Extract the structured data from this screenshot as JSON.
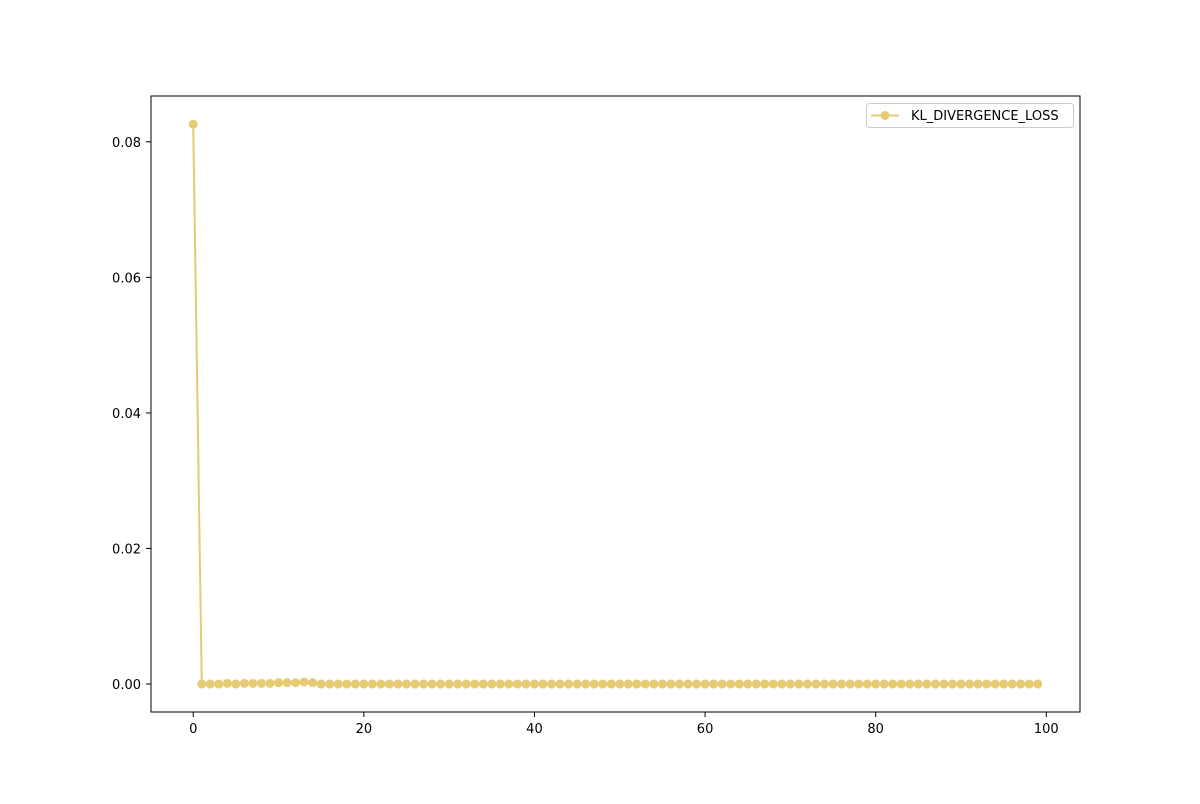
{
  "chart_data": {
    "type": "line",
    "title": "",
    "xlabel": "",
    "ylabel": "",
    "xlim": [
      -4.95,
      103.95
    ],
    "ylim": [
      -0.00413,
      0.08676
    ],
    "xticks": [
      0,
      20,
      40,
      60,
      80,
      100
    ],
    "xtick_labels": [
      "0",
      "20",
      "40",
      "60",
      "80",
      "100"
    ],
    "yticks": [
      0.0,
      0.02,
      0.04,
      0.06,
      0.08
    ],
    "ytick_labels": [
      "0.00",
      "0.02",
      "0.04",
      "0.06",
      "0.08"
    ],
    "grid": false,
    "legend_position": "top-right",
    "series": [
      {
        "name": "KL_DIVERGENCE_LOSS",
        "color": "#e5cc74",
        "marker": "circle",
        "x": [
          0,
          1,
          2,
          3,
          4,
          5,
          6,
          7,
          8,
          9,
          10,
          11,
          12,
          13,
          14,
          15,
          16,
          17,
          18,
          19,
          20,
          21,
          22,
          23,
          24,
          25,
          26,
          27,
          28,
          29,
          30,
          31,
          32,
          33,
          34,
          35,
          36,
          37,
          38,
          39,
          40,
          41,
          42,
          43,
          44,
          45,
          46,
          47,
          48,
          49,
          50,
          51,
          52,
          53,
          54,
          55,
          56,
          57,
          58,
          59,
          60,
          61,
          62,
          63,
          64,
          65,
          66,
          67,
          68,
          69,
          70,
          71,
          72,
          73,
          74,
          75,
          76,
          77,
          78,
          79,
          80,
          81,
          82,
          83,
          84,
          85,
          86,
          87,
          88,
          89,
          90,
          91,
          92,
          93,
          94,
          95,
          96,
          97,
          98,
          99
        ],
        "values": [
          0.0826,
          0.0,
          0.0,
          0.0,
          0.0001,
          0.0,
          0.0001,
          0.0001,
          0.0001,
          0.0001,
          0.0002,
          0.0002,
          0.0002,
          0.0003,
          0.0002,
          0.0,
          0.0,
          0.0,
          0.0,
          0.0,
          0.0,
          0.0,
          0.0,
          0.0,
          0.0,
          0.0,
          0.0,
          0.0,
          0.0,
          0.0,
          0.0,
          0.0,
          0.0,
          0.0,
          0.0,
          0.0,
          0.0,
          0.0,
          0.0,
          0.0,
          0.0,
          0.0,
          0.0,
          0.0,
          0.0,
          0.0,
          0.0,
          0.0,
          0.0,
          0.0,
          0.0,
          0.0,
          0.0,
          0.0,
          0.0,
          0.0,
          0.0,
          0.0,
          0.0,
          0.0,
          0.0,
          0.0,
          0.0,
          0.0,
          0.0,
          0.0,
          0.0,
          0.0,
          0.0,
          0.0,
          0.0,
          0.0,
          0.0,
          0.0,
          0.0,
          0.0,
          0.0,
          0.0,
          0.0,
          0.0,
          0.0,
          0.0,
          0.0,
          0.0,
          0.0,
          0.0,
          0.0,
          0.0,
          0.0,
          0.0,
          0.0,
          0.0,
          0.0,
          0.0,
          0.0,
          0.0,
          0.0,
          0.0,
          0.0,
          0.0
        ]
      }
    ]
  }
}
